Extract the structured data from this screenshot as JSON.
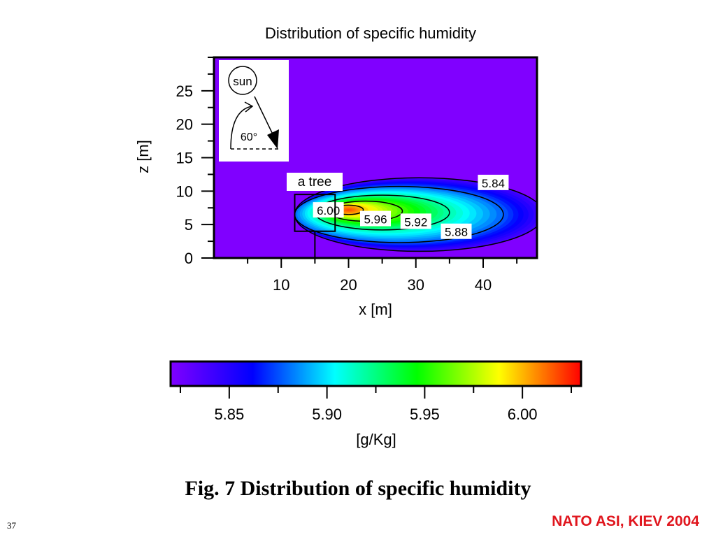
{
  "chart_data": {
    "type": "heatmap",
    "title": "Distribution of specific humidity",
    "xlabel": "x [m]",
    "ylabel": "z [m]",
    "xlim": [
      0,
      48
    ],
    "ylim": [
      0,
      30
    ],
    "x_ticks": [
      10,
      20,
      30,
      40
    ],
    "y_ticks": [
      0,
      5,
      10,
      15,
      20,
      25
    ],
    "background_value": 5.82,
    "contours": [
      {
        "level": 5.84,
        "label": "5.84",
        "label_at": [
          41.5,
          11.3
        ],
        "cx": 30.5,
        "cz": 6.5,
        "rx": 18.5,
        "rz": 5.5
      },
      {
        "level": 5.88,
        "label": "5.88",
        "label_at": [
          36,
          4
        ],
        "cx": 27.5,
        "cz": 6.5,
        "rx": 15.5,
        "rz": 4.2
      },
      {
        "level": 5.92,
        "label": "5.92",
        "label_at": [
          30,
          5.5
        ],
        "cx": 25,
        "cz": 6.8,
        "rx": 10,
        "rz": 2.6
      },
      {
        "level": 5.96,
        "label": "5.96",
        "label_at": [
          24,
          5.9
        ],
        "cx": 22.5,
        "cz": 7,
        "rx": 5.5,
        "rz": 1.5
      },
      {
        "level": 6.0,
        "label": "6.00",
        "label_at": [
          17,
          7.2
        ],
        "cx": 20,
        "cz": 7.2,
        "rx": 2.2,
        "rz": 0.7
      }
    ],
    "annotations": {
      "tree_label": "a tree",
      "tree_x_range": [
        12,
        18
      ],
      "tree_crown_z_range": [
        4,
        9.5
      ],
      "tree_trunk_x": 15,
      "sun_label": "sun",
      "sun_angle_label": "60°"
    },
    "colorbar": {
      "label": "[g/Kg]",
      "range": [
        5.82,
        6.03
      ],
      "ticks": [
        5.85,
        5.9,
        5.95,
        6.0
      ],
      "tick_labels": [
        "5.85",
        "5.90",
        "5.95",
        "6.00"
      ],
      "colors": [
        "#8000ff",
        "#0000ff",
        "#00ffff",
        "#00ff00",
        "#ffff00",
        "#ff0000"
      ]
    }
  },
  "caption": "Fig. 7  Distribution of specific humidity",
  "page_number": "37",
  "footer": "NATO ASI, KIEV 2004",
  "colors": {
    "footer": "#e0161e",
    "background": "#ffffff"
  }
}
